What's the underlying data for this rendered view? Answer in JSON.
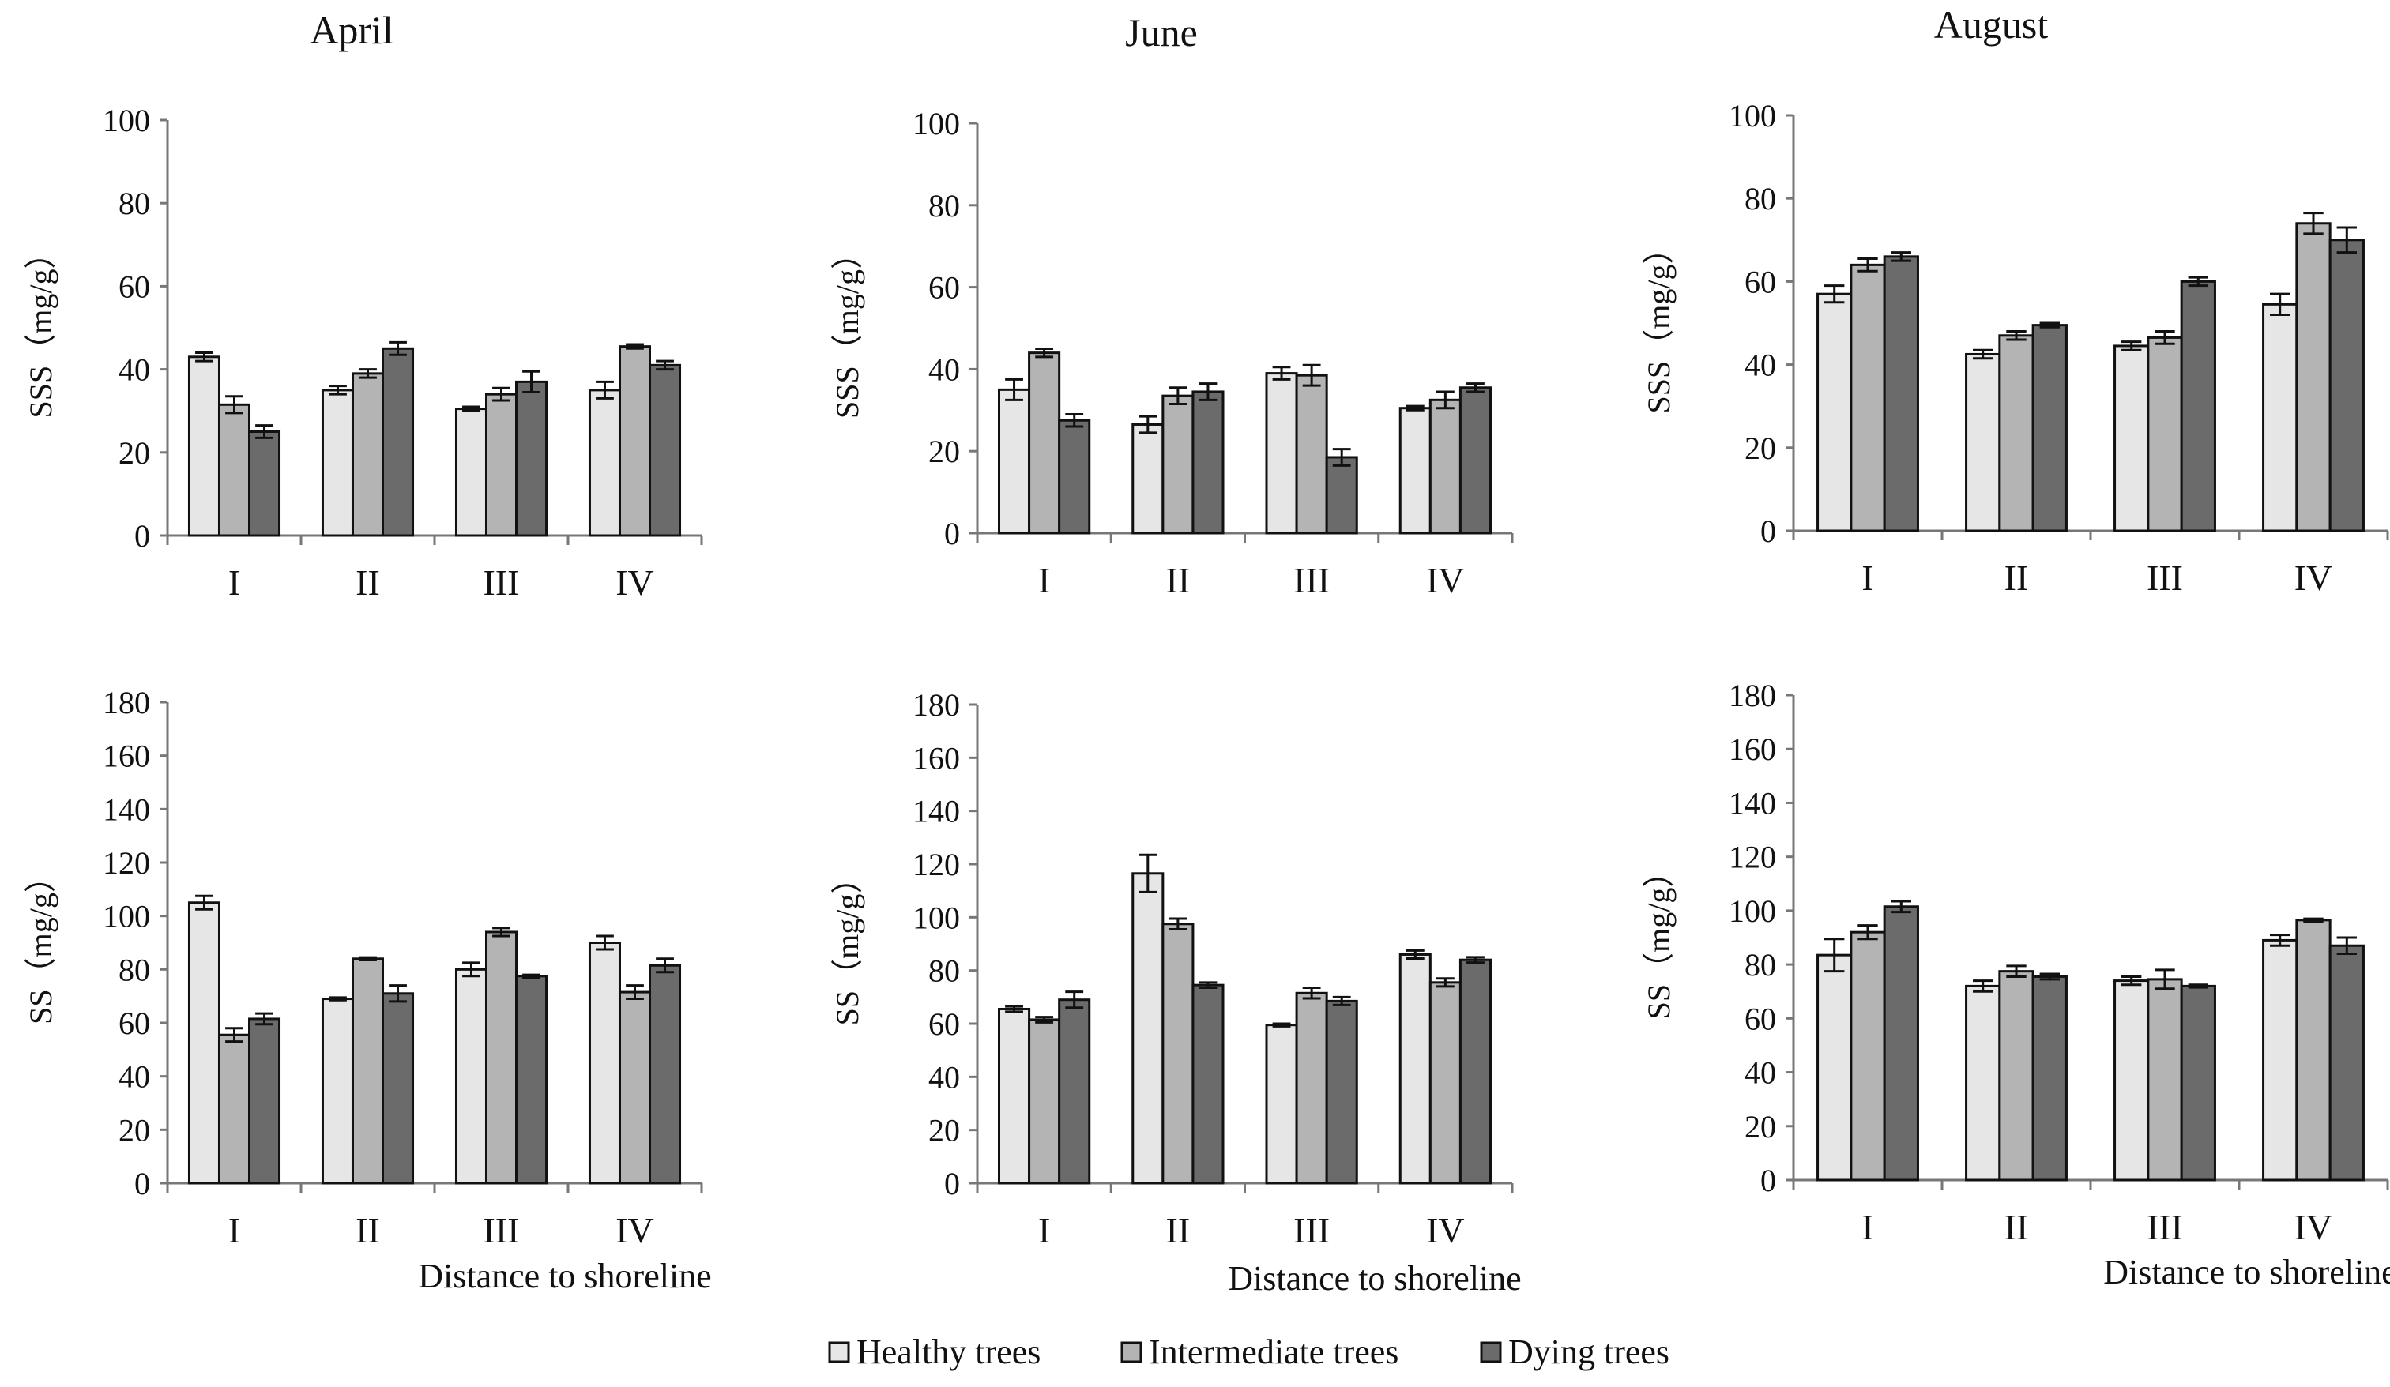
{
  "legend": [
    {
      "label": "Healthy trees",
      "color": "#e6e6e6"
    },
    {
      "label": "Intermediate trees",
      "color": "#b4b4b4"
    },
    {
      "label": "Dying trees",
      "color": "#6b6b6b"
    }
  ],
  "chart_data": [
    {
      "type": "bar",
      "title": "April",
      "ylabel": "SSS（mg/g）",
      "xlabel": "",
      "ylim": [
        0,
        100
      ],
      "yticks": [
        0,
        20,
        40,
        60,
        80,
        100
      ],
      "categories": [
        "I",
        "II",
        "III",
        "IV"
      ],
      "series": [
        {
          "name": "Healthy trees",
          "values": [
            43,
            35,
            30.5,
            35
          ],
          "errors": [
            1,
            1,
            0.5,
            2
          ]
        },
        {
          "name": "Intermediate trees",
          "values": [
            31.5,
            39,
            34,
            45.5
          ],
          "errors": [
            2,
            1,
            1.5,
            0.5
          ]
        },
        {
          "name": "Dying trees",
          "values": [
            25,
            45,
            37,
            41
          ],
          "errors": [
            1.5,
            1.5,
            2.5,
            1
          ]
        }
      ]
    },
    {
      "type": "bar",
      "title": "June",
      "ylabel": "SSS（mg/g）",
      "xlabel": "",
      "ylim": [
        0,
        100
      ],
      "yticks": [
        0,
        20,
        40,
        60,
        80,
        100
      ],
      "categories": [
        "I",
        "II",
        "III",
        "IV"
      ],
      "series": [
        {
          "name": "Healthy trees",
          "values": [
            35,
            26.5,
            39,
            30.5
          ],
          "errors": [
            2.5,
            2,
            1.5,
            0.5
          ]
        },
        {
          "name": "Intermediate trees",
          "values": [
            44,
            33.5,
            38.5,
            32.5
          ],
          "errors": [
            1,
            2,
            2.5,
            2
          ]
        },
        {
          "name": "Dying trees",
          "values": [
            27.5,
            34.5,
            18.5,
            35.5
          ],
          "errors": [
            1.5,
            2,
            2,
            1
          ]
        }
      ]
    },
    {
      "type": "bar",
      "title": "August",
      "ylabel": "SSS（mg/g）",
      "xlabel": "",
      "ylim": [
        0,
        100
      ],
      "yticks": [
        0,
        20,
        40,
        60,
        80,
        100
      ],
      "categories": [
        "I",
        "II",
        "III",
        "IV"
      ],
      "series": [
        {
          "name": "Healthy trees",
          "values": [
            57,
            42.5,
            44.5,
            54.5
          ],
          "errors": [
            2,
            1,
            1,
            2.5
          ]
        },
        {
          "name": "Intermediate trees",
          "values": [
            64,
            47,
            46.5,
            74
          ],
          "errors": [
            1.5,
            1,
            1.5,
            2.5
          ]
        },
        {
          "name": "Dying trees",
          "values": [
            66,
            49.5,
            60,
            70
          ],
          "errors": [
            1,
            0.5,
            1,
            3
          ]
        }
      ]
    },
    {
      "type": "bar",
      "title": "",
      "ylabel": "SS（mg/g）",
      "xlabel": "Distance to shoreline",
      "ylim": [
        0,
        180
      ],
      "yticks": [
        0,
        20,
        40,
        60,
        80,
        100,
        120,
        140,
        160,
        180
      ],
      "categories": [
        "I",
        "II",
        "III",
        "IV"
      ],
      "series": [
        {
          "name": "Healthy trees",
          "values": [
            105,
            69,
            80,
            90
          ],
          "errors": [
            2.5,
            0.5,
            2.5,
            2.5
          ]
        },
        {
          "name": "Intermediate trees",
          "values": [
            55.5,
            84,
            94,
            71.5
          ],
          "errors": [
            2.5,
            0.5,
            1.5,
            2.5
          ]
        },
        {
          "name": "Dying trees",
          "values": [
            61.5,
            71,
            77.5,
            81.5
          ],
          "errors": [
            2,
            3,
            0.5,
            2.5
          ]
        }
      ]
    },
    {
      "type": "bar",
      "title": "",
      "ylabel": "SS（mg/g）",
      "xlabel": "Distance to shoreline",
      "ylim": [
        0,
        180
      ],
      "yticks": [
        0,
        20,
        40,
        60,
        80,
        100,
        120,
        140,
        160,
        180
      ],
      "categories": [
        "I",
        "II",
        "III",
        "IV"
      ],
      "series": [
        {
          "name": "Healthy trees",
          "values": [
            65.5,
            116.5,
            59.5,
            86
          ],
          "errors": [
            1,
            7,
            0.5,
            1.5
          ]
        },
        {
          "name": "Intermediate trees",
          "values": [
            61.5,
            97.5,
            71.5,
            75.5
          ],
          "errors": [
            1,
            2,
            2,
            1.5
          ]
        },
        {
          "name": "Dying trees",
          "values": [
            69,
            74.5,
            68.5,
            84
          ],
          "errors": [
            3,
            1,
            1.5,
            1
          ]
        }
      ]
    },
    {
      "type": "bar",
      "title": "",
      "ylabel": "SS（mg/g）",
      "xlabel": "Distance to shoreline",
      "ylim": [
        0,
        180
      ],
      "yticks": [
        0,
        20,
        40,
        60,
        80,
        100,
        120,
        140,
        160,
        180
      ],
      "categories": [
        "I",
        "II",
        "III",
        "IV"
      ],
      "series": [
        {
          "name": "Healthy trees",
          "values": [
            83.5,
            72,
            74,
            89
          ],
          "errors": [
            6,
            2,
            1.5,
            2
          ]
        },
        {
          "name": "Intermediate trees",
          "values": [
            92,
            77.5,
            74.5,
            96.5
          ],
          "errors": [
            2.5,
            2,
            3.5,
            0.5
          ]
        },
        {
          "name": "Dying trees",
          "values": [
            101.5,
            75.5,
            72,
            87
          ],
          "errors": [
            2,
            1,
            0.5,
            3
          ]
        }
      ]
    }
  ]
}
